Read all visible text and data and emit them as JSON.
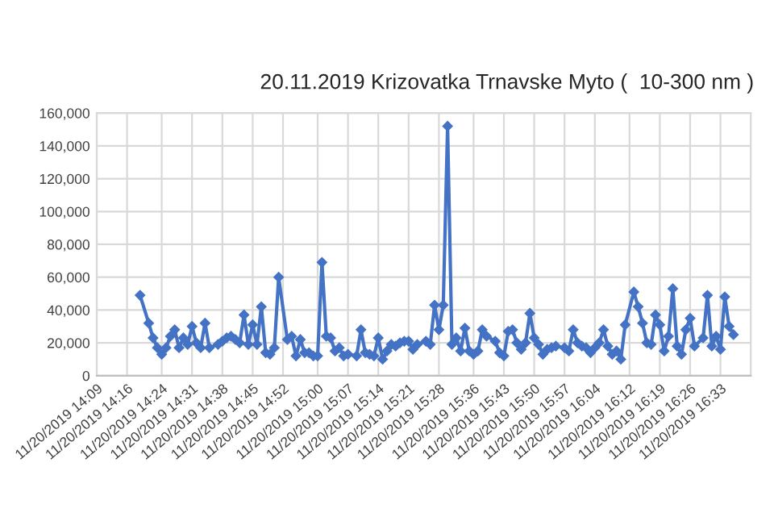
{
  "chart_data": {
    "type": "line",
    "title": "20.11.2019 Krizovatka Trnavske Myto (  10-300 nm )",
    "x": [
      "2019-11-20T14:19",
      "2019-11-20T14:21",
      "2019-11-20T14:22",
      "2019-11-20T14:23",
      "2019-11-20T14:24",
      "2019-11-20T14:25",
      "2019-11-20T14:26",
      "2019-11-20T14:27",
      "2019-11-20T14:28",
      "2019-11-20T14:29",
      "2019-11-20T14:30",
      "2019-11-20T14:31",
      "2019-11-20T14:32",
      "2019-11-20T14:33",
      "2019-11-20T14:34",
      "2019-11-20T14:35",
      "2019-11-20T14:37",
      "2019-11-20T14:38",
      "2019-11-20T14:39",
      "2019-11-20T14:40",
      "2019-11-20T14:41",
      "2019-11-20T14:42",
      "2019-11-20T14:43",
      "2019-11-20T14:44",
      "2019-11-20T14:45",
      "2019-11-20T14:46",
      "2019-11-20T14:47",
      "2019-11-20T14:48",
      "2019-11-20T14:49",
      "2019-11-20T14:50",
      "2019-11-20T14:51",
      "2019-11-20T14:53",
      "2019-11-20T14:54",
      "2019-11-20T14:55",
      "2019-11-20T14:56",
      "2019-11-20T14:57",
      "2019-11-20T14:58",
      "2019-11-20T14:59",
      "2019-11-20T15:00",
      "2019-11-20T15:01",
      "2019-11-20T15:02",
      "2019-11-20T15:03",
      "2019-11-20T15:04",
      "2019-11-20T15:05",
      "2019-11-20T15:06",
      "2019-11-20T15:07",
      "2019-11-20T15:09",
      "2019-11-20T15:10",
      "2019-11-20T15:11",
      "2019-11-20T15:12",
      "2019-11-20T15:13",
      "2019-11-20T15:14",
      "2019-11-20T15:15",
      "2019-11-20T15:16",
      "2019-11-20T15:17",
      "2019-11-20T15:18",
      "2019-11-20T15:19",
      "2019-11-20T15:20",
      "2019-11-20T15:21",
      "2019-11-20T15:22",
      "2019-11-20T15:23",
      "2019-11-20T15:25",
      "2019-11-20T15:26",
      "2019-11-20T15:27",
      "2019-11-20T15:28",
      "2019-11-20T15:29",
      "2019-11-20T15:30",
      "2019-11-20T15:31",
      "2019-11-20T15:32",
      "2019-11-20T15:33",
      "2019-11-20T15:34",
      "2019-11-20T15:35",
      "2019-11-20T15:36",
      "2019-11-20T15:37",
      "2019-11-20T15:38",
      "2019-11-20T15:39",
      "2019-11-20T15:41",
      "2019-11-20T15:42",
      "2019-11-20T15:43",
      "2019-11-20T15:44",
      "2019-11-20T15:45",
      "2019-11-20T15:46",
      "2019-11-20T15:47",
      "2019-11-20T15:48",
      "2019-11-20T15:49",
      "2019-11-20T15:50",
      "2019-11-20T15:51",
      "2019-11-20T15:52",
      "2019-11-20T15:53",
      "2019-11-20T15:54",
      "2019-11-20T15:55",
      "2019-11-20T15:57",
      "2019-11-20T15:58",
      "2019-11-20T15:59",
      "2019-11-20T16:00",
      "2019-11-20T16:01",
      "2019-11-20T16:02",
      "2019-11-20T16:03",
      "2019-11-20T16:04",
      "2019-11-20T16:05",
      "2019-11-20T16:06",
      "2019-11-20T16:07",
      "2019-11-20T16:08",
      "2019-11-20T16:09",
      "2019-11-20T16:10",
      "2019-11-20T16:11",
      "2019-11-20T16:13",
      "2019-11-20T16:14",
      "2019-11-20T16:15",
      "2019-11-20T16:16",
      "2019-11-20T16:17",
      "2019-11-20T16:18",
      "2019-11-20T16:19",
      "2019-11-20T16:20",
      "2019-11-20T16:21",
      "2019-11-20T16:22",
      "2019-11-20T16:23",
      "2019-11-20T16:24",
      "2019-11-20T16:25",
      "2019-11-20T16:26",
      "2019-11-20T16:27",
      "2019-11-20T16:29",
      "2019-11-20T16:30",
      "2019-11-20T16:31",
      "2019-11-20T16:32",
      "2019-11-20T16:33",
      "2019-11-20T16:34",
      "2019-11-20T16:35",
      "2019-11-20T16:36"
    ],
    "series": [
      {
        "color": "#4472c4",
        "values": [
          49000,
          32000,
          23000,
          17000,
          13000,
          17000,
          24000,
          28000,
          17000,
          23000,
          19000,
          30000,
          20000,
          17000,
          32000,
          17000,
          19000,
          21000,
          23000,
          24000,
          22000,
          20000,
          37000,
          19000,
          31000,
          19000,
          42000,
          14000,
          13000,
          17000,
          60000,
          22000,
          24000,
          12000,
          22000,
          14000,
          14000,
          12000,
          12000,
          69000,
          24000,
          23000,
          15000,
          17000,
          12000,
          13000,
          12000,
          28000,
          14000,
          13000,
          12000,
          23000,
          10000,
          15000,
          19000,
          18000,
          20000,
          21000,
          21000,
          16000,
          19000,
          21000,
          19000,
          43000,
          28000,
          43000,
          152000,
          19000,
          23000,
          15000,
          29000,
          15000,
          13000,
          15000,
          28000,
          24000,
          21000,
          14000,
          12000,
          27000,
          28000,
          20000,
          16000,
          20000,
          38000,
          23000,
          19000,
          13000,
          16000,
          17000,
          18000,
          17000,
          15000,
          28000,
          20000,
          18000,
          17000,
          14000,
          17000,
          20000,
          28000,
          18000,
          13000,
          15000,
          10000,
          31000,
          51000,
          42000,
          32000,
          20000,
          19000,
          37000,
          31000,
          15000,
          24000,
          53000,
          18000,
          13000,
          28000,
          35000,
          18000,
          23000,
          49000,
          18000,
          24000,
          16000,
          48000,
          30000,
          25000
        ]
      }
    ],
    "xlim": [
      "2019-11-20T14:09",
      "2019-11-20T16:40"
    ],
    "xticks": [
      {
        "value": "2019-11-20T14:09",
        "label": "11/20/2019 14:09"
      },
      {
        "value": "2019-11-20T14:16",
        "label": "11/20/2019 14:16"
      },
      {
        "value": "2019-11-20T14:24",
        "label": "11/20/2019 14:24"
      },
      {
        "value": "2019-11-20T14:31",
        "label": "11/20/2019 14:31"
      },
      {
        "value": "2019-11-20T14:38",
        "label": "11/20/2019 14:38"
      },
      {
        "value": "2019-11-20T14:45",
        "label": "11/20/2019 14:45"
      },
      {
        "value": "2019-11-20T14:52",
        "label": "11/20/2019 14:52"
      },
      {
        "value": "2019-11-20T15:00",
        "label": "11/20/2019 15:00"
      },
      {
        "value": "2019-11-20T15:07",
        "label": "11/20/2019 15:07"
      },
      {
        "value": "2019-11-20T15:14",
        "label": "11/20/2019 15:14"
      },
      {
        "value": "2019-11-20T15:21",
        "label": "11/20/2019 15:21"
      },
      {
        "value": "2019-11-20T15:28",
        "label": "11/20/2019 15:28"
      },
      {
        "value": "2019-11-20T15:36",
        "label": "11/20/2019 15:36"
      },
      {
        "value": "2019-11-20T15:43",
        "label": "11/20/2019 15:43"
      },
      {
        "value": "2019-11-20T15:50",
        "label": "11/20/2019 15:50"
      },
      {
        "value": "2019-11-20T15:57",
        "label": "11/20/2019 15:57"
      },
      {
        "value": "2019-11-20T16:04",
        "label": "11/20/2019 16:04"
      },
      {
        "value": "2019-11-20T16:12",
        "label": "11/20/2019 16:12"
      },
      {
        "value": "2019-11-20T16:19",
        "label": "11/20/2019 16:19"
      },
      {
        "value": "2019-11-20T16:26",
        "label": "11/20/2019 16:26"
      },
      {
        "value": "2019-11-20T16:33",
        "label": "11/20/2019 16:33"
      }
    ],
    "ylim": [
      0,
      160000
    ],
    "yticks": [
      {
        "value": 0,
        "label": "0"
      },
      {
        "value": 20000,
        "label": "20,000"
      },
      {
        "value": 40000,
        "label": "40,000"
      },
      {
        "value": 60000,
        "label": "60,000"
      },
      {
        "value": 80000,
        "label": "80,000"
      },
      {
        "value": 100000,
        "label": "100,000"
      },
      {
        "value": 120000,
        "label": "120,000"
      },
      {
        "value": 140000,
        "label": "140,000"
      },
      {
        "value": 160000,
        "label": "160,000"
      }
    ],
    "grid": true,
    "legend": false,
    "marker": "diamond",
    "line_style": "solid"
  }
}
